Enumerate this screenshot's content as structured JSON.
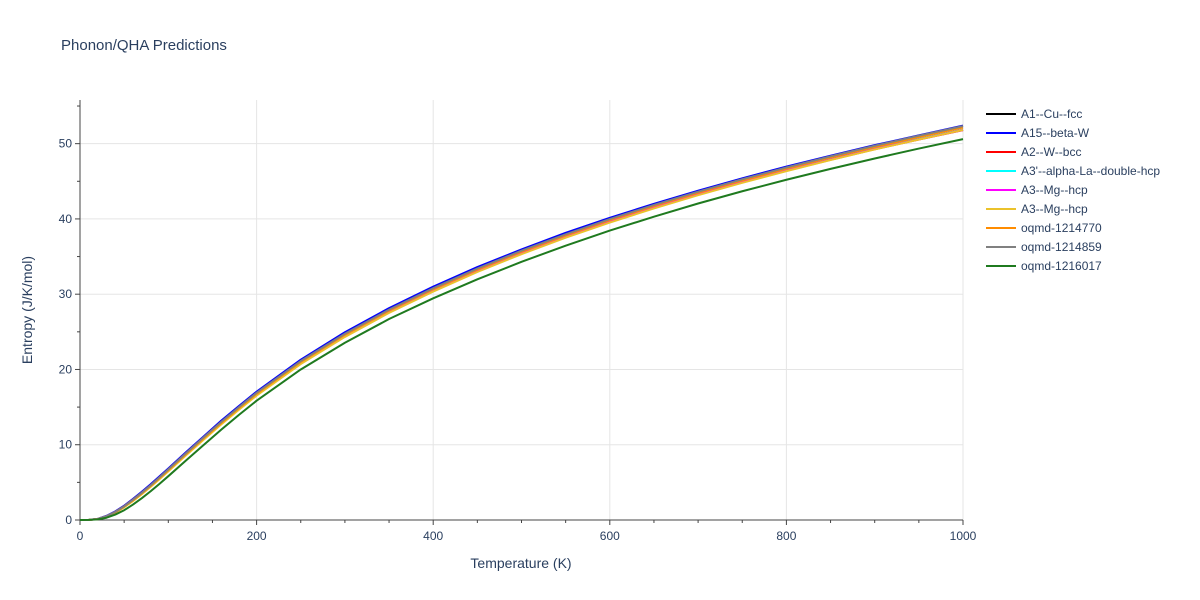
{
  "chart_data": {
    "type": "line",
    "title": "Phonon/QHA Predictions",
    "xlabel": "Temperature (K)",
    "ylabel": "Entropy (J/K/mol)",
    "xlim": [
      0,
      1000
    ],
    "ylim": [
      0,
      55.8
    ],
    "xticks": [
      0,
      200,
      400,
      600,
      800,
      1000
    ],
    "yticks": [
      0,
      10,
      20,
      30,
      40,
      50
    ],
    "x": [
      0,
      10,
      20,
      30,
      40,
      50,
      60,
      70,
      80,
      90,
      100,
      120,
      140,
      160,
      180,
      200,
      250,
      300,
      350,
      400,
      450,
      500,
      550,
      600,
      650,
      700,
      750,
      800,
      850,
      900,
      950,
      1000
    ],
    "grid": true,
    "legend_position": "right",
    "series": [
      {
        "name": "A1--Cu--fcc",
        "color": "#000000",
        "values": [
          0,
          0.02,
          0.12,
          0.45,
          1.0,
          1.75,
          2.6,
          3.5,
          4.5,
          5.55,
          6.6,
          8.75,
          10.85,
          12.95,
          14.9,
          16.8,
          21.0,
          24.6,
          27.8,
          30.65,
          33.25,
          35.6,
          37.75,
          39.75,
          41.6,
          43.35,
          44.95,
          46.5,
          47.95,
          49.3,
          50.6,
          51.85
        ]
      },
      {
        "name": "A15--beta-W",
        "color": "#0000ff",
        "values": [
          0,
          0.02,
          0.15,
          0.55,
          1.15,
          1.9,
          2.8,
          3.75,
          4.75,
          5.8,
          6.85,
          9.0,
          11.1,
          13.2,
          15.15,
          17.05,
          21.3,
          24.95,
          28.15,
          31.0,
          33.6,
          35.95,
          38.15,
          40.15,
          42.0,
          43.75,
          45.4,
          46.95,
          48.4,
          49.8,
          51.1,
          52.4
        ]
      },
      {
        "name": "A2--W--bcc",
        "color": "#ff0000",
        "values": [
          0,
          0.02,
          0.14,
          0.5,
          1.08,
          1.82,
          2.7,
          3.62,
          4.6,
          5.65,
          6.7,
          8.85,
          10.95,
          13.0,
          14.95,
          16.85,
          21.0,
          24.6,
          27.75,
          30.55,
          33.1,
          35.45,
          37.6,
          39.6,
          41.45,
          43.2,
          44.85,
          46.4,
          47.85,
          49.25,
          50.55,
          51.8
        ]
      },
      {
        "name": "A3'--alpha-La--double-hcp",
        "color": "#00ffff",
        "values": [
          0,
          0.02,
          0.13,
          0.48,
          1.05,
          1.78,
          2.65,
          3.58,
          4.57,
          5.6,
          6.65,
          8.8,
          10.9,
          12.95,
          14.9,
          16.8,
          21.0,
          24.6,
          27.8,
          30.6,
          33.2,
          35.55,
          37.7,
          39.7,
          41.55,
          43.3,
          44.9,
          46.45,
          47.9,
          49.3,
          50.6,
          51.85
        ]
      },
      {
        "name": "A3--Mg--hcp",
        "color": "#ff00ff",
        "values": [
          0,
          0.02,
          0.13,
          0.47,
          1.04,
          1.77,
          2.64,
          3.57,
          4.56,
          5.59,
          6.64,
          8.78,
          10.88,
          12.93,
          14.88,
          16.78,
          20.98,
          24.58,
          27.78,
          30.58,
          33.18,
          35.53,
          37.68,
          39.68,
          41.53,
          43.28,
          44.88,
          46.43,
          47.88,
          49.28,
          50.58,
          51.83
        ]
      },
      {
        "name": "A3--Mg--hcp",
        "color": "#ebc22b",
        "values": [
          0,
          0.02,
          0.12,
          0.44,
          0.98,
          1.68,
          2.52,
          3.43,
          4.4,
          5.42,
          6.46,
          8.58,
          10.66,
          12.7,
          14.65,
          16.53,
          20.72,
          24.32,
          27.52,
          30.35,
          32.95,
          35.32,
          37.5,
          39.52,
          41.4,
          43.15,
          44.8,
          46.35,
          47.83,
          49.23,
          50.55,
          51.82
        ]
      },
      {
        "name": "oqmd-1214770",
        "color": "#ff8c00",
        "values": [
          0,
          0.02,
          0.13,
          0.47,
          1.03,
          1.76,
          2.62,
          3.55,
          4.54,
          5.57,
          6.62,
          8.76,
          10.86,
          12.91,
          14.87,
          16.77,
          21.0,
          24.62,
          27.83,
          30.67,
          33.27,
          35.65,
          37.83,
          39.85,
          41.72,
          43.48,
          45.12,
          46.67,
          48.15,
          49.55,
          50.88,
          52.15
        ]
      },
      {
        "name": "oqmd-1214859",
        "color": "#808080",
        "values": [
          0,
          0.02,
          0.14,
          0.5,
          1.08,
          1.82,
          2.7,
          3.63,
          4.62,
          5.66,
          6.72,
          8.87,
          10.98,
          13.04,
          15.0,
          16.9,
          21.12,
          24.74,
          27.95,
          30.8,
          33.4,
          35.78,
          37.96,
          39.98,
          41.86,
          43.62,
          45.27,
          46.83,
          48.31,
          49.72,
          51.06,
          52.33
        ]
      },
      {
        "name": "oqmd-1216017",
        "color": "#1f7a1f",
        "values": [
          0,
          0.01,
          0.08,
          0.3,
          0.72,
          1.3,
          2.05,
          2.9,
          3.82,
          4.8,
          5.82,
          7.9,
          9.97,
          12.0,
          13.97,
          15.85,
          20.0,
          23.55,
          26.7,
          29.45,
          31.98,
          34.3,
          36.45,
          38.45,
          40.3,
          42.05,
          43.68,
          45.2,
          46.65,
          48.03,
          49.35,
          50.6
        ]
      }
    ]
  }
}
